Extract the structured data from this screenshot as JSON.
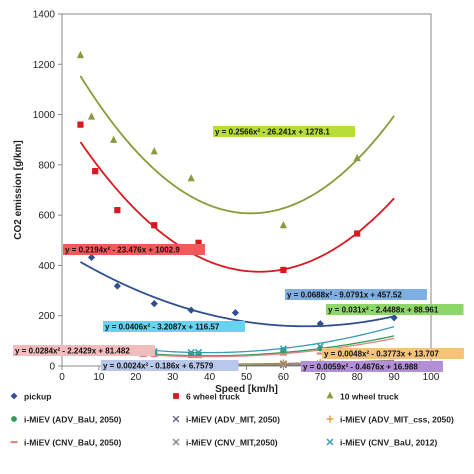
{
  "chart_data": {
    "type": "scatter",
    "xlabel": "Speed [km/h]",
    "ylabel": "CO2 emission [g/km]",
    "xlim": [
      0,
      100
    ],
    "ylim": [
      0,
      1400
    ],
    "x_ticks": [
      "0",
      "10",
      "20",
      "30",
      "40",
      "50",
      "60",
      "70",
      "80",
      "90",
      "100"
    ],
    "y_ticks": [
      "0",
      "200",
      "400",
      "600",
      "800",
      "1000",
      "1200",
      "1400"
    ],
    "grid": false,
    "legend_position": "bottom",
    "series": [
      {
        "name": "pickup",
        "color": "#2f4f8f",
        "marker": "diamond",
        "points": [
          [
            8,
            432
          ],
          [
            15,
            318
          ],
          [
            25,
            248
          ],
          [
            35,
            222
          ],
          [
            47,
            212
          ],
          [
            70,
            168
          ],
          [
            90,
            192
          ]
        ],
        "fit": {
          "a": 0.0688,
          "b": -9.0791,
          "c": 457.52,
          "x_range": [
            5,
            90
          ]
        },
        "equation": "y = 0.0688x² - 9.0791x + 457.52",
        "eq_box_color": "#7faee0"
      },
      {
        "name": "6 wheel truck",
        "color": "#d71920",
        "marker": "square",
        "points": [
          [
            5,
            960
          ],
          [
            9,
            775
          ],
          [
            15,
            620
          ],
          [
            25,
            560
          ],
          [
            37,
            490
          ],
          [
            60,
            382
          ],
          [
            80,
            527
          ]
        ],
        "fit": {
          "a": 0.2194,
          "b": -23.476,
          "c": 1002.9,
          "x_range": [
            5,
            90
          ]
        },
        "equation": "y = 0.2194x² - 23.476x + 1002.9",
        "eq_box_color": "#f25a5a"
      },
      {
        "name": "10 wheel truck",
        "color": "#8a9a3a",
        "marker": "triangle",
        "points": [
          [
            5,
            1235
          ],
          [
            8,
            990
          ],
          [
            14,
            898
          ],
          [
            25,
            852
          ],
          [
            35,
            745
          ],
          [
            60,
            558
          ],
          [
            80,
            825
          ]
        ],
        "fit": {
          "a": 0.2566,
          "b": -26.241,
          "c": 1278.1,
          "x_range": [
            5,
            90
          ]
        },
        "equation": "y = 0.2566x² - 26.241x + 1278.1",
        "eq_box_color": "#b7dd3a"
      },
      {
        "name": "i-MiEV (ADV_BaU, 2050)",
        "color": "#2e9e55",
        "marker": "circle",
        "points": [
          [
            22,
            52
          ],
          [
            25,
            52
          ],
          [
            35,
            48
          ],
          [
            37,
            48
          ],
          [
            60,
            62
          ],
          [
            70,
            70
          ]
        ],
        "fit": {
          "a": 0.031,
          "b": -2.4488,
          "c": 88.961,
          "x_range": [
            20,
            90
          ]
        },
        "equation": "y = 0.031x² - 2.4488x + 88.961",
        "eq_box_color": "#8fd66a"
      },
      {
        "name": "i-MiEV (ADV_MIT, 2050)",
        "color": "#6a6a8a",
        "marker": "x",
        "points": [
          [
            22,
            3
          ],
          [
            25,
            3
          ],
          [
            35,
            3
          ],
          [
            37,
            3
          ],
          [
            60,
            5
          ],
          [
            70,
            5
          ]
        ],
        "fit": {
          "a": 0.0024,
          "b": -0.186,
          "c": 6.7579,
          "x_range": [
            20,
            90
          ]
        },
        "equation": "y = 0.0024x² - 0.186x + 6.7579",
        "eq_box_color": "#b8c7ea"
      },
      {
        "name": "i-MiEV (ADV_MIT_css, 2050)",
        "color": "#e8a040",
        "marker": "plus",
        "points": [
          [
            22,
            10
          ],
          [
            25,
            10
          ],
          [
            35,
            9
          ],
          [
            37,
            9
          ],
          [
            60,
            12
          ],
          [
            70,
            13
          ]
        ],
        "fit": {
          "a": 0.0048,
          "b": -0.3773,
          "c": 13.707,
          "x_range": [
            20,
            90
          ]
        },
        "equation": "y = 0.0048x² - 0.3773x + 13.707",
        "eq_box_color": "#f5c27a"
      },
      {
        "name": "i-MiEV (CNV_BaU, 2050)",
        "color": "#e08585",
        "marker": "dash",
        "points": [
          [
            22,
            40
          ],
          [
            25,
            40
          ],
          [
            35,
            36
          ],
          [
            37,
            36
          ],
          [
            60,
            46
          ],
          [
            70,
            50
          ]
        ],
        "fit": {
          "a": 0.0284,
          "b": -2.2429,
          "c": 81.482,
          "x_range": [
            20,
            90
          ]
        },
        "equation": "y = 0.0284x² - 2.2429x + 81.482",
        "eq_box_color": "#f2bcbc"
      },
      {
        "name": "i-MiEV (CNV_MIT,2050)",
        "color": "#8a8a8a",
        "marker": "x",
        "points": [
          [
            22,
            6
          ],
          [
            25,
            6
          ],
          [
            35,
            6
          ],
          [
            37,
            6
          ],
          [
            60,
            9
          ],
          [
            70,
            9
          ]
        ],
        "fit": {
          "a": 0.0059,
          "b": -0.4676,
          "c": 16.988,
          "x_range": [
            20,
            90
          ]
        },
        "equation": "y = 0.0059x² - 0.4676x + 16.988",
        "eq_box_color": "#b28fd6"
      },
      {
        "name": "i-MiEV (CNV_BaU, 2012)",
        "color": "#3a9ab8",
        "marker": "x",
        "points": [
          [
            22,
            58
          ],
          [
            25,
            58
          ],
          [
            35,
            54
          ],
          [
            37,
            54
          ],
          [
            60,
            68
          ],
          [
            70,
            78
          ]
        ],
        "fit": {
          "a": 0.0406,
          "b": -3.2087,
          "c": 116.57,
          "x_range": [
            20,
            90
          ]
        },
        "equation": "y = 0.0406x² - 3.2087x + 116.57",
        "eq_box_color": "#66d3f0"
      }
    ]
  }
}
